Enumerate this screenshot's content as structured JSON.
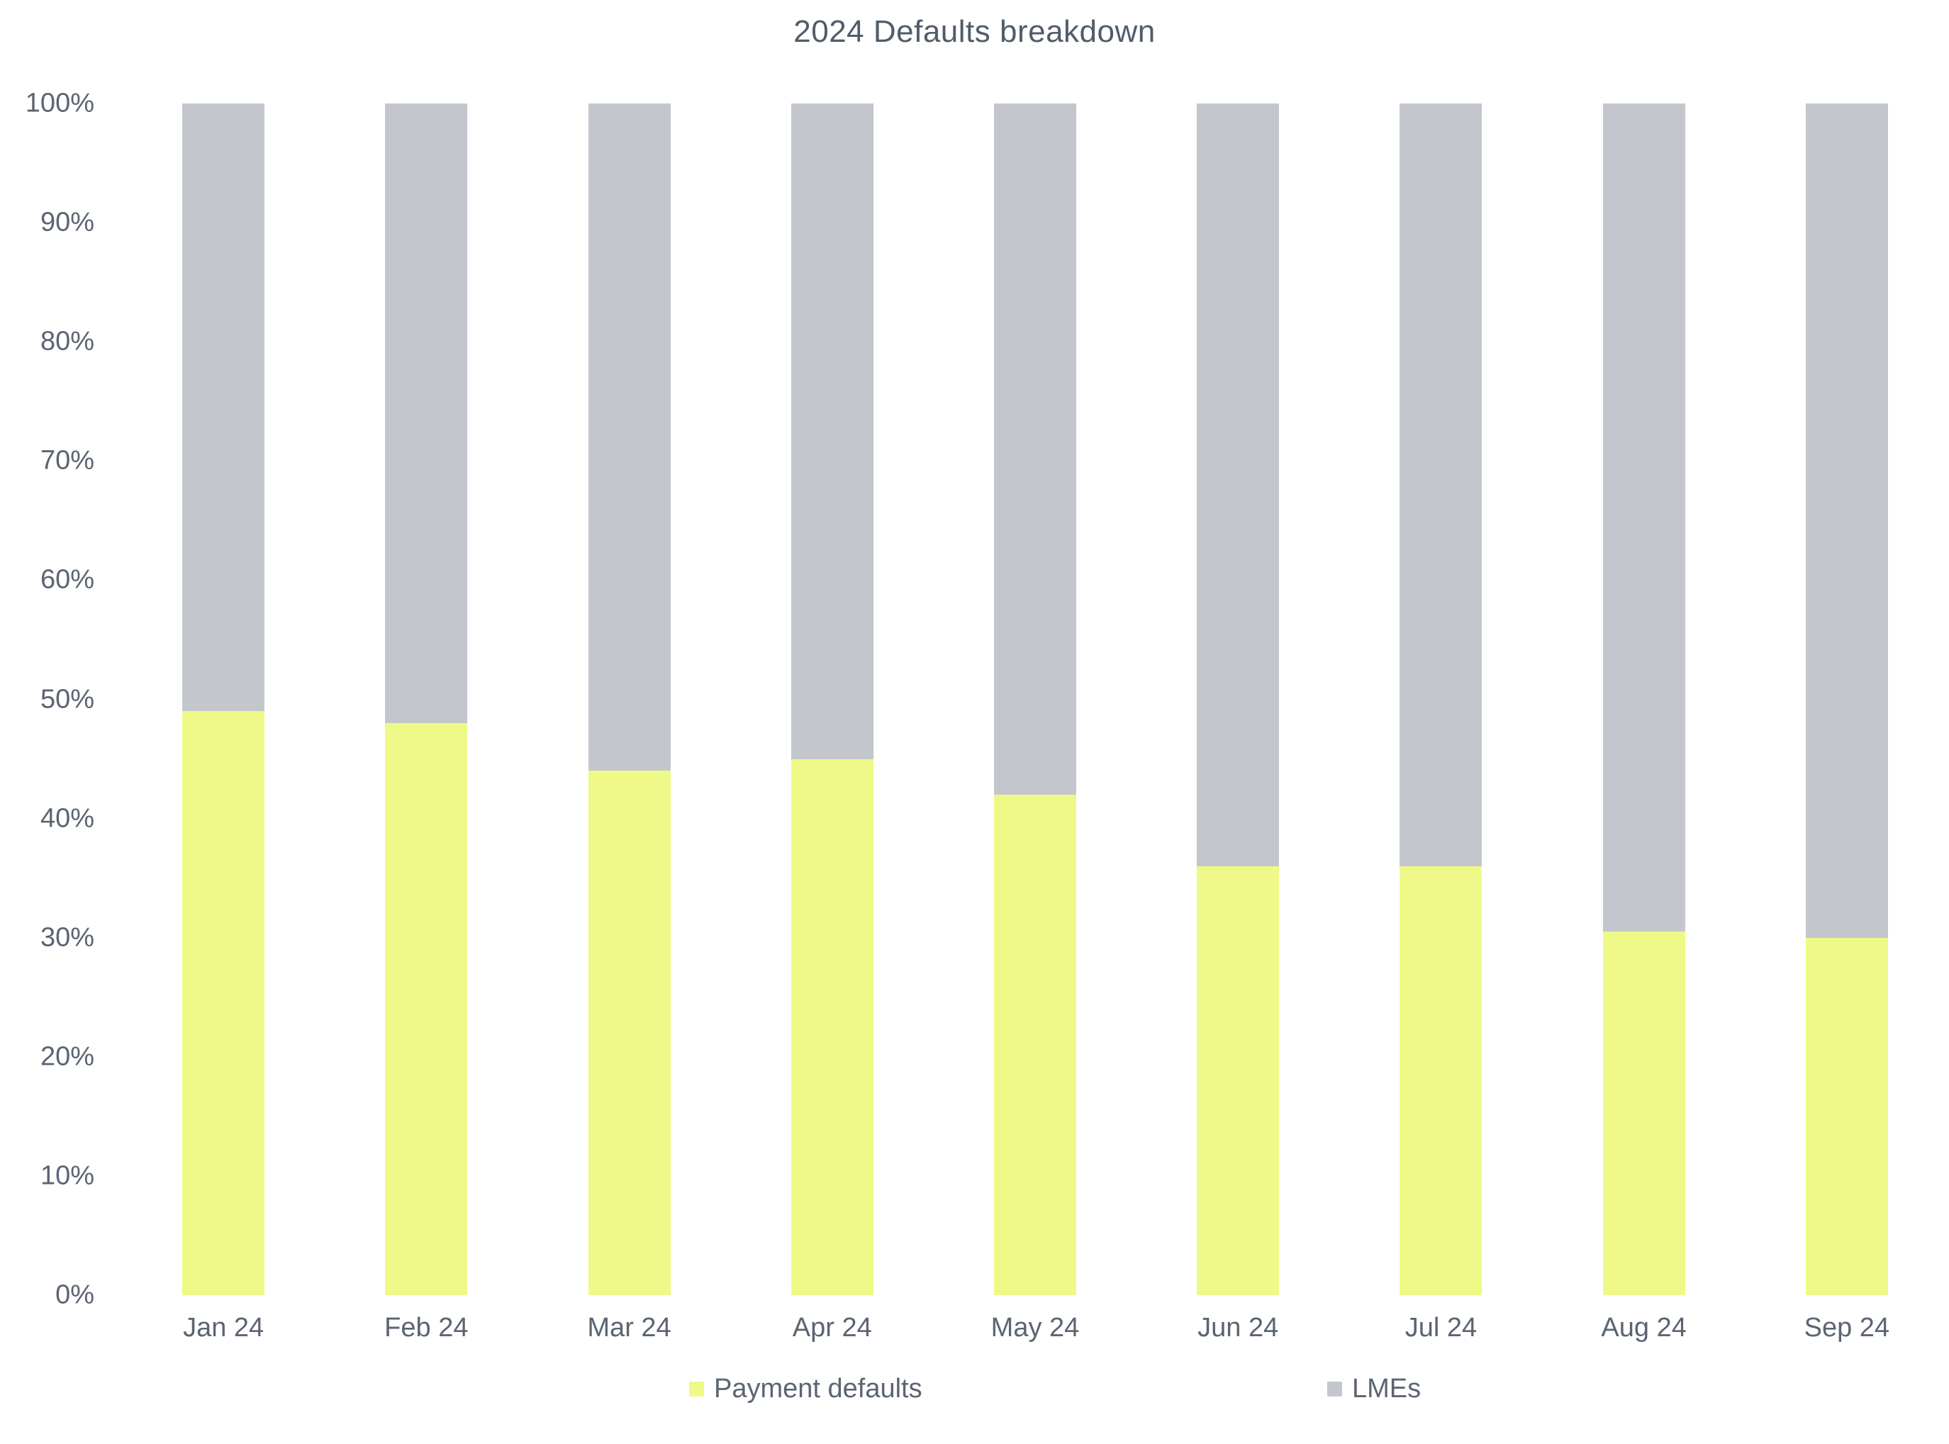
{
  "title": "2024 Defaults breakdown",
  "colors": {
    "payment_defaults": "#eff987",
    "lmes": "#c3c6cd",
    "axis_text": "#5b6472",
    "title_text": "#515c6b",
    "background": "#ffffff"
  },
  "chart_data": {
    "type": "bar",
    "stacked": true,
    "stacking": "percent",
    "title": "2024 Defaults breakdown",
    "categories": [
      "Jan 24",
      "Feb 24",
      "Mar 24",
      "Apr 24",
      "May 24",
      "Jun 24",
      "Jul 24",
      "Aug 24",
      "Sep 24"
    ],
    "series": [
      {
        "name": "Payment defaults",
        "color": "#eff987",
        "values": [
          49,
          48,
          44,
          45,
          42,
          36,
          36,
          30.5,
          30
        ]
      },
      {
        "name": "LMEs",
        "color": "#c3c6cd",
        "values": [
          51,
          52,
          56,
          55,
          58,
          64,
          64,
          69.5,
          70
        ]
      }
    ],
    "xlabel": "",
    "ylabel": "",
    "ylim": [
      0,
      100
    ],
    "y_tick_values": [
      0,
      10,
      20,
      30,
      40,
      50,
      60,
      70,
      80,
      90,
      100
    ],
    "y_tick_labels": [
      "0%",
      "10%",
      "20%",
      "30%",
      "40%",
      "50%",
      "60%",
      "70%",
      "80%",
      "90%",
      "100%"
    ],
    "grid": false,
    "legend_position": "bottom"
  },
  "legend": {
    "items": [
      {
        "label": "Payment defaults",
        "color": "#eff987"
      },
      {
        "label": "LMEs",
        "color": "#c3c6cd"
      }
    ]
  }
}
